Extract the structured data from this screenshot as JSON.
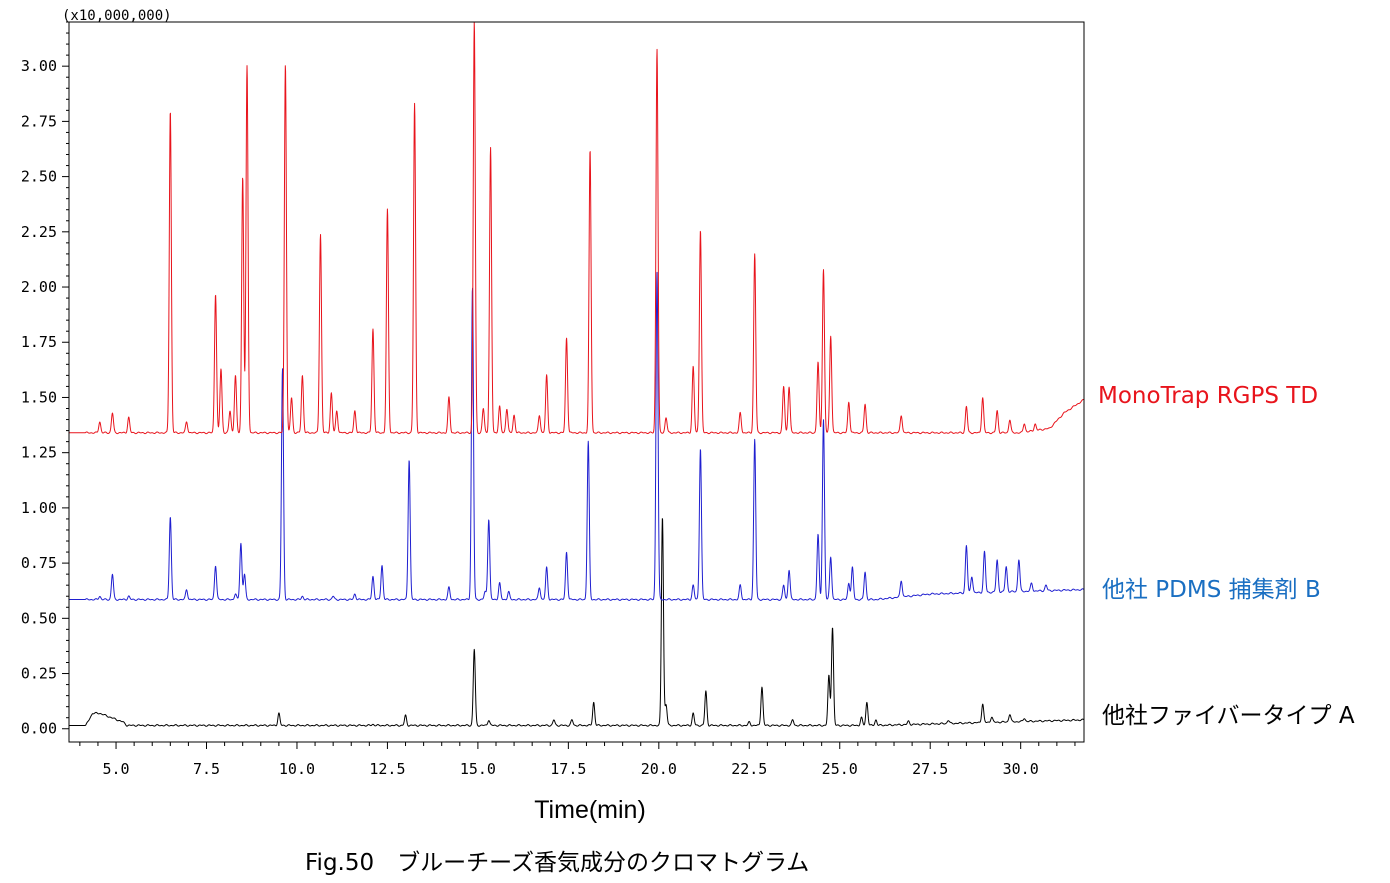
{
  "chart_data": {
    "type": "line",
    "scale_note": "(x10,000,000)",
    "xlabel": "Time(min)",
    "caption": "Fig.50　ブルーチーズ香気成分のクロマトグラム",
    "xlim": [
      3.7,
      31.75
    ],
    "ylim": [
      -0.06,
      3.2
    ],
    "x_ticks": [
      "5.0",
      "7.5",
      "10.0",
      "12.5",
      "15.0",
      "17.5",
      "20.0",
      "22.5",
      "25.0",
      "27.5",
      "30.0"
    ],
    "x_tick_values": [
      5.0,
      7.5,
      10.0,
      12.5,
      15.0,
      17.5,
      20.0,
      22.5,
      25.0,
      27.5,
      30.0
    ],
    "y_ticks": [
      "0.00",
      "0.25",
      "0.50",
      "0.75",
      "1.00",
      "1.25",
      "1.50",
      "1.75",
      "2.00",
      "2.25",
      "2.50",
      "2.75",
      "3.00"
    ],
    "y_tick_values": [
      0.0,
      0.25,
      0.5,
      0.75,
      1.0,
      1.25,
      1.5,
      1.75,
      2.0,
      2.25,
      2.5,
      2.75,
      3.0
    ],
    "series": [
      {
        "name": "MonoTrap RGPS TD",
        "color": "#e8141c",
        "baseline": 1.34,
        "peaks": [
          [
            4.55,
            1.39
          ],
          [
            4.9,
            1.43
          ],
          [
            5.35,
            1.41
          ],
          [
            6.5,
            2.8
          ],
          [
            6.95,
            1.39
          ],
          [
            7.75,
            1.97
          ],
          [
            7.9,
            1.63
          ],
          [
            8.15,
            1.44
          ],
          [
            8.3,
            1.6
          ],
          [
            8.5,
            2.5
          ],
          [
            8.62,
            3.0
          ],
          [
            9.68,
            3.01
          ],
          [
            9.85,
            1.5
          ],
          [
            10.15,
            1.6
          ],
          [
            10.65,
            2.24
          ],
          [
            10.95,
            1.52
          ],
          [
            11.1,
            1.44
          ],
          [
            11.6,
            1.44
          ],
          [
            12.1,
            1.81
          ],
          [
            12.5,
            2.35
          ],
          [
            13.25,
            2.83
          ],
          [
            14.2,
            1.5
          ],
          [
            14.9,
            3.2
          ],
          [
            15.15,
            1.45
          ],
          [
            15.35,
            2.63
          ],
          [
            15.6,
            1.46
          ],
          [
            15.8,
            1.45
          ],
          [
            16.0,
            1.42
          ],
          [
            16.7,
            1.42
          ],
          [
            16.9,
            1.6
          ],
          [
            17.45,
            1.77
          ],
          [
            18.1,
            2.62
          ],
          [
            19.95,
            3.08
          ],
          [
            20.2,
            1.41
          ],
          [
            20.95,
            1.64
          ],
          [
            21.15,
            2.26
          ],
          [
            22.25,
            1.43
          ],
          [
            22.65,
            2.15
          ],
          [
            23.45,
            1.55
          ],
          [
            23.6,
            1.55
          ],
          [
            24.4,
            1.66
          ],
          [
            24.55,
            2.08
          ],
          [
            24.75,
            1.78
          ],
          [
            25.25,
            1.48
          ],
          [
            25.7,
            1.47
          ],
          [
            26.7,
            1.42
          ],
          [
            28.5,
            1.46
          ],
          [
            28.95,
            1.5
          ],
          [
            29.35,
            1.44
          ],
          [
            29.7,
            1.4
          ],
          [
            30.1,
            1.38
          ],
          [
            30.4,
            1.37
          ]
        ],
        "drift": [
          [
            30.0,
            1.34
          ],
          [
            30.8,
            1.36
          ],
          [
            31.2,
            1.43
          ],
          [
            31.75,
            1.49
          ]
        ]
      },
      {
        "name": "他社 PDMS 捕集剤 B",
        "color": "#1f1fd0",
        "baseline": 0.585,
        "peaks": [
          [
            4.55,
            0.6
          ],
          [
            4.9,
            0.7
          ],
          [
            5.35,
            0.6
          ],
          [
            6.5,
            0.96
          ],
          [
            6.95,
            0.63
          ],
          [
            7.75,
            0.74
          ],
          [
            8.3,
            0.61
          ],
          [
            8.45,
            0.84
          ],
          [
            8.55,
            0.7
          ],
          [
            9.6,
            1.63
          ],
          [
            10.15,
            0.6
          ],
          [
            11.0,
            0.6
          ],
          [
            11.6,
            0.61
          ],
          [
            12.1,
            0.69
          ],
          [
            12.35,
            0.74
          ],
          [
            13.1,
            1.22
          ],
          [
            14.2,
            0.64
          ],
          [
            14.85,
            2.0
          ],
          [
            15.2,
            0.62
          ],
          [
            15.3,
            0.95
          ],
          [
            15.6,
            0.66
          ],
          [
            15.85,
            0.62
          ],
          [
            16.7,
            0.64
          ],
          [
            16.9,
            0.73
          ],
          [
            17.45,
            0.8
          ],
          [
            18.05,
            1.3
          ],
          [
            19.95,
            2.07
          ],
          [
            20.95,
            0.65
          ],
          [
            21.15,
            1.27
          ],
          [
            22.25,
            0.65
          ],
          [
            22.65,
            1.31
          ],
          [
            23.45,
            0.65
          ],
          [
            23.6,
            0.72
          ],
          [
            24.4,
            0.88
          ],
          [
            24.55,
            1.4
          ],
          [
            24.75,
            0.78
          ],
          [
            25.25,
            0.66
          ],
          [
            25.35,
            0.73
          ],
          [
            25.7,
            0.71
          ],
          [
            26.7,
            0.66
          ],
          [
            28.5,
            0.8
          ],
          [
            28.65,
            0.66
          ],
          [
            29.0,
            0.77
          ],
          [
            29.35,
            0.73
          ],
          [
            29.6,
            0.7
          ],
          [
            29.95,
            0.73
          ],
          [
            30.3,
            0.62
          ],
          [
            30.7,
            0.61
          ]
        ],
        "drift": [
          [
            26.0,
            0.585
          ],
          [
            27.5,
            0.61
          ],
          [
            31.75,
            0.63
          ]
        ]
      },
      {
        "name": "他社ファイバータイプ A",
        "color": "#000000",
        "baseline": 0.015,
        "peaks": [
          [
            9.5,
            0.07
          ],
          [
            12.1,
            0.02
          ],
          [
            13.0,
            0.06
          ],
          [
            14.9,
            0.36
          ],
          [
            15.3,
            0.04
          ],
          [
            17.1,
            0.04
          ],
          [
            17.6,
            0.04
          ],
          [
            18.2,
            0.12
          ],
          [
            20.1,
            0.96
          ],
          [
            20.2,
            0.11
          ],
          [
            20.95,
            0.07
          ],
          [
            21.3,
            0.17
          ],
          [
            22.5,
            0.03
          ],
          [
            22.85,
            0.19
          ],
          [
            23.7,
            0.04
          ],
          [
            24.7,
            0.24
          ],
          [
            24.8,
            0.46
          ],
          [
            25.6,
            0.05
          ],
          [
            25.75,
            0.12
          ],
          [
            26.0,
            0.04
          ],
          [
            26.9,
            0.03
          ],
          [
            28.0,
            0.03
          ],
          [
            28.95,
            0.1
          ],
          [
            29.2,
            0.04
          ],
          [
            29.7,
            0.05
          ],
          [
            30.1,
            0.03
          ]
        ],
        "hump": [
          [
            4.15,
            0.01
          ],
          [
            4.35,
            0.07
          ],
          [
            4.55,
            0.07
          ],
          [
            5.2,
            0.03
          ],
          [
            5.3,
            0.015
          ]
        ],
        "drift": [
          [
            26.0,
            0.015
          ],
          [
            31.75,
            0.04
          ]
        ]
      }
    ]
  }
}
